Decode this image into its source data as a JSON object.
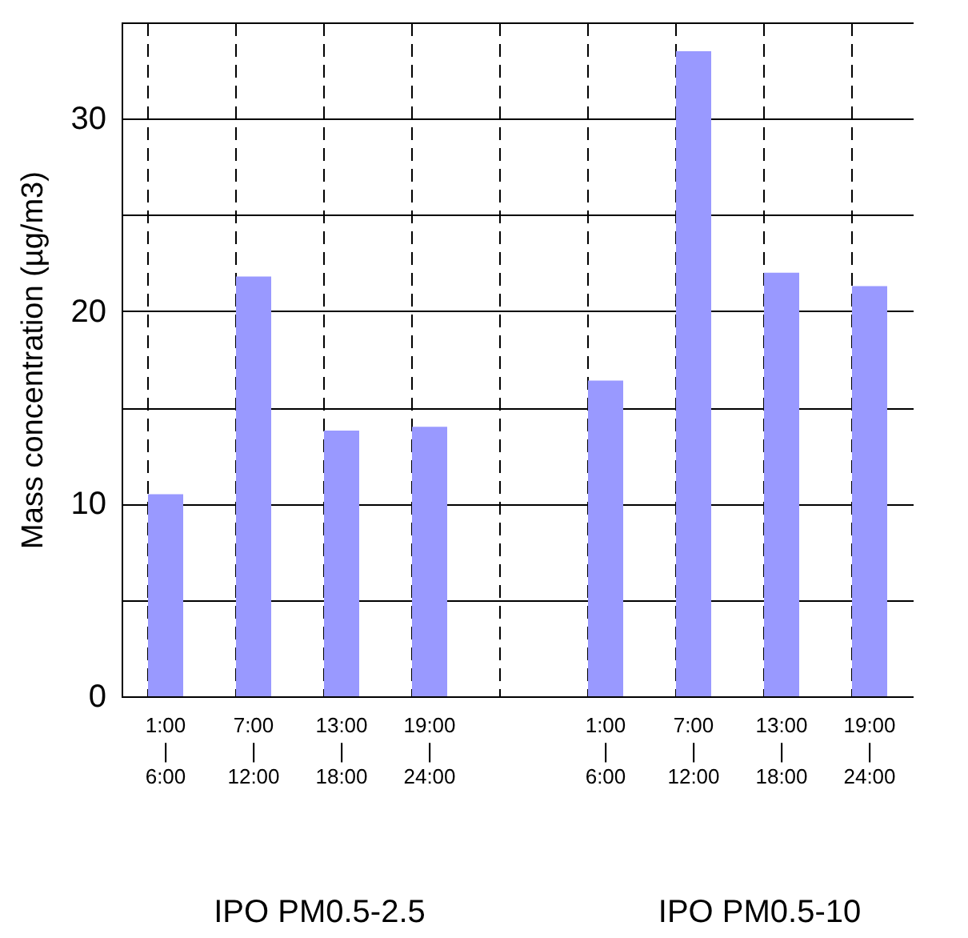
{
  "chart_data": {
    "type": "bar",
    "ylabel": "Mass concentration   (µg/m3)",
    "categories": [
      "1:00\n|\n6:00",
      "7:00\n|\n12:00",
      "13:00\n|\n18:00",
      "19:00\n|\n24:00",
      null,
      "1:00\n|\n6:00",
      "7:00\n|\n12:00",
      "13:00\n|\n18:00",
      "19:00\n|\n24:00"
    ],
    "values": [
      10.5,
      21.8,
      13.8,
      14.0,
      null,
      16.4,
      33.5,
      22.0,
      21.3
    ],
    "color": "#9999ff",
    "ylim": [
      0,
      35
    ],
    "yticks": [
      0,
      {
        "value": 5,
        "label": null
      },
      10,
      {
        "value": 15,
        "label": null
      },
      20,
      {
        "value": 25,
        "label": null
      },
      30
    ],
    "grid": true,
    "annotations": [
      "IPO PM0.5-2.5",
      "IPO PM0.5-10"
    ]
  }
}
